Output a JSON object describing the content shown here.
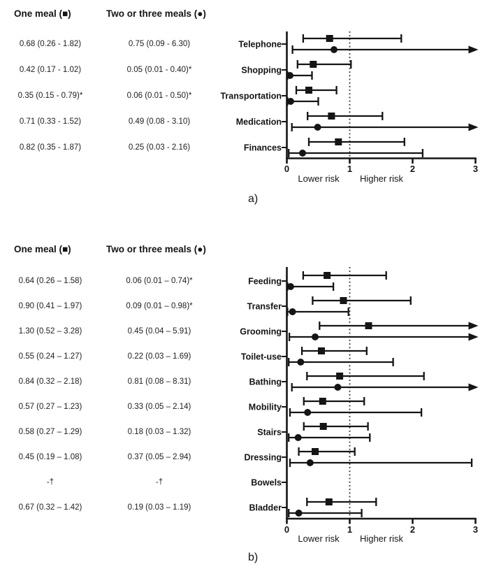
{
  "figure": {
    "background": "#ffffff",
    "ink_color": "#151515",
    "marker_shapes": {
      "one_meal": "square",
      "two_meals": "circle"
    }
  },
  "chart_data": [
    {
      "type": "forest",
      "panel_id": "a",
      "panel_label": "a)",
      "legend": {
        "one_meal": "One meal (■)",
        "two_meals": "Two or three meals (●)"
      },
      "axis": {
        "min": 0,
        "max": 3,
        "ticks": [
          0,
          1,
          2,
          3
        ],
        "reference_line": 1,
        "lower_label": "Lower risk",
        "higher_label": "Higher risk"
      },
      "rows": [
        {
          "category": "Telephone",
          "one_meal": {
            "text": "0.68 (0.26 - 1.82)",
            "est": 0.68,
            "lo": 0.26,
            "hi": 1.82
          },
          "two_meals": {
            "text": "0.75 (0.09 - 6.30)",
            "est": 0.75,
            "lo": 0.09,
            "hi": 6.3
          }
        },
        {
          "category": "Shopping",
          "one_meal": {
            "text": "0.42 (0.17 - 1.02)",
            "est": 0.42,
            "lo": 0.17,
            "hi": 1.02
          },
          "two_meals": {
            "text": "0.05 (0.01 - 0.40)*",
            "est": 0.05,
            "lo": 0.01,
            "hi": 0.4
          }
        },
        {
          "category": "Transportation",
          "one_meal": {
            "text": "0.35 (0.15 - 0.79)*",
            "est": 0.35,
            "lo": 0.15,
            "hi": 0.79
          },
          "two_meals": {
            "text": "0.06 (0.01 - 0.50)*",
            "est": 0.06,
            "lo": 0.01,
            "hi": 0.5
          }
        },
        {
          "category": "Medication",
          "one_meal": {
            "text": "0.71 (0.33 - 1.52)",
            "est": 0.71,
            "lo": 0.33,
            "hi": 1.52
          },
          "two_meals": {
            "text": "0.49 (0.08 - 3.10)",
            "est": 0.49,
            "lo": 0.08,
            "hi": 3.1
          }
        },
        {
          "category": "Finances",
          "one_meal": {
            "text": "0.82 (0.35 - 1.87)",
            "est": 0.82,
            "lo": 0.35,
            "hi": 1.87
          },
          "two_meals": {
            "text": "0.25 (0.03 - 2.16)",
            "est": 0.25,
            "lo": 0.03,
            "hi": 2.16
          }
        }
      ]
    },
    {
      "type": "forest",
      "panel_id": "b",
      "panel_label": "b)",
      "legend": {
        "one_meal": "One meal (■)",
        "two_meals": "Two or three meals (●)"
      },
      "axis": {
        "min": 0,
        "max": 3,
        "ticks": [
          0,
          1,
          2,
          3
        ],
        "reference_line": 1,
        "lower_label": "Lower risk",
        "higher_label": "Higher risk"
      },
      "rows": [
        {
          "category": "Feeding",
          "one_meal": {
            "text": "0.64 (0.26 – 1.58)",
            "est": 0.64,
            "lo": 0.26,
            "hi": 1.58
          },
          "two_meals": {
            "text": "0.06 (0.01 – 0.74)*",
            "est": 0.06,
            "lo": 0.01,
            "hi": 0.74
          }
        },
        {
          "category": "Transfer",
          "one_meal": {
            "text": "0.90 (0.41 – 1.97)",
            "est": 0.9,
            "lo": 0.41,
            "hi": 1.97
          },
          "two_meals": {
            "text": "0.09 (0.01 – 0.98)*",
            "est": 0.09,
            "lo": 0.01,
            "hi": 0.98
          }
        },
        {
          "category": "Grooming",
          "one_meal": {
            "text": "1.30 (0.52 – 3.28)",
            "est": 1.3,
            "lo": 0.52,
            "hi": 3.28
          },
          "two_meals": {
            "text": "0.45 (0.04 – 5.91)",
            "est": 0.45,
            "lo": 0.04,
            "hi": 5.91
          }
        },
        {
          "category": "Toilet-use",
          "one_meal": {
            "text": "0.55 (0.24 – 1.27)",
            "est": 0.55,
            "lo": 0.24,
            "hi": 1.27
          },
          "two_meals": {
            "text": "0.22 (0.03 – 1.69)",
            "est": 0.22,
            "lo": 0.03,
            "hi": 1.69
          }
        },
        {
          "category": "Bathing",
          "one_meal": {
            "text": "0.84 (0.32 – 2.18)",
            "est": 0.84,
            "lo": 0.32,
            "hi": 2.18
          },
          "two_meals": {
            "text": "0.81 (0.08 – 8.31)",
            "est": 0.81,
            "lo": 0.08,
            "hi": 8.31
          }
        },
        {
          "category": "Mobility",
          "one_meal": {
            "text": "0.57 (0.27 – 1.23)",
            "est": 0.57,
            "lo": 0.27,
            "hi": 1.23
          },
          "two_meals": {
            "text": "0.33 (0.05 – 2.14)",
            "est": 0.33,
            "lo": 0.05,
            "hi": 2.14
          }
        },
        {
          "category": "Stairs",
          "one_meal": {
            "text": "0.58 (0.27 – 1.29)",
            "est": 0.58,
            "lo": 0.27,
            "hi": 1.29
          },
          "two_meals": {
            "text": "0.18 (0.03 – 1.32)",
            "est": 0.18,
            "lo": 0.03,
            "hi": 1.32
          }
        },
        {
          "category": "Dressing",
          "one_meal": {
            "text": "0.45 (0.19 – 1.08)",
            "est": 0.45,
            "lo": 0.19,
            "hi": 1.08
          },
          "two_meals": {
            "text": "0.37 (0.05 – 2.94)",
            "est": 0.37,
            "lo": 0.05,
            "hi": 2.94
          }
        },
        {
          "category": "Bowels",
          "one_meal": {
            "text": "-†",
            "est": null,
            "lo": null,
            "hi": null
          },
          "two_meals": {
            "text": "-†",
            "est": null,
            "lo": null,
            "hi": null
          }
        },
        {
          "category": "Bladder",
          "one_meal": {
            "text": "0.67 (0.32 – 1.42)",
            "est": 0.67,
            "lo": 0.32,
            "hi": 1.42
          },
          "two_meals": {
            "text": "0.19 (0.03 – 1.19)",
            "est": 0.19,
            "lo": 0.03,
            "hi": 1.19
          }
        }
      ]
    }
  ]
}
